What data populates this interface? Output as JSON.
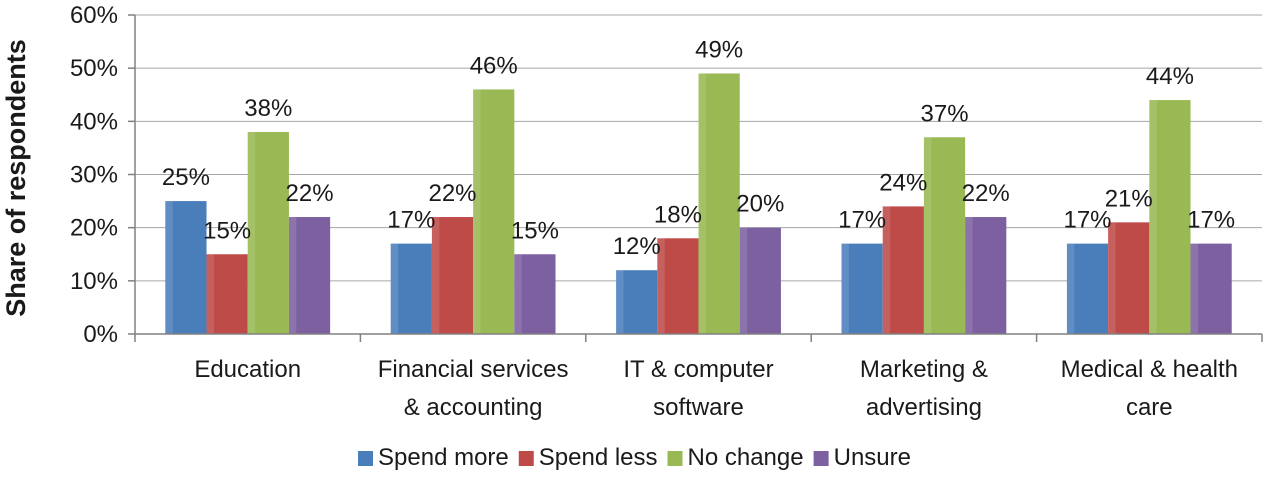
{
  "chart_data": {
    "type": "bar",
    "title": "",
    "xlabel": "",
    "ylabel": "Share of respondents",
    "ylim": [
      0,
      60
    ],
    "y_ticks": [
      "0%",
      "10%",
      "20%",
      "30%",
      "40%",
      "50%",
      "60%"
    ],
    "grid": true,
    "legend_position": "bottom",
    "categories": [
      [
        "Education"
      ],
      [
        "Financial services",
        "& accounting"
      ],
      [
        "IT & computer",
        "software"
      ],
      [
        "Marketing &",
        "advertising"
      ],
      [
        "Medical & health",
        "care"
      ]
    ],
    "series": [
      {
        "name": "Spend more",
        "color": "#4a7ebb",
        "values": [
          25,
          17,
          12,
          17,
          17
        ],
        "labels": [
          "25%",
          "17%",
          "12%",
          "17%",
          "17%"
        ]
      },
      {
        "name": "Spend less",
        "color": "#be4b48",
        "values": [
          15,
          22,
          18,
          24,
          21
        ],
        "labels": [
          "15%",
          "22%",
          "18%",
          "24%",
          "21%"
        ]
      },
      {
        "name": "No change",
        "color": "#98b954",
        "values": [
          38,
          46,
          49,
          37,
          44
        ],
        "labels": [
          "38%",
          "46%",
          "49%",
          "37%",
          "44%"
        ]
      },
      {
        "name": "Unsure",
        "color": "#7d60a0",
        "values": [
          22,
          15,
          20,
          22,
          17
        ],
        "labels": [
          "22%",
          "15%",
          "20%",
          "22%",
          "17%"
        ]
      }
    ]
  }
}
